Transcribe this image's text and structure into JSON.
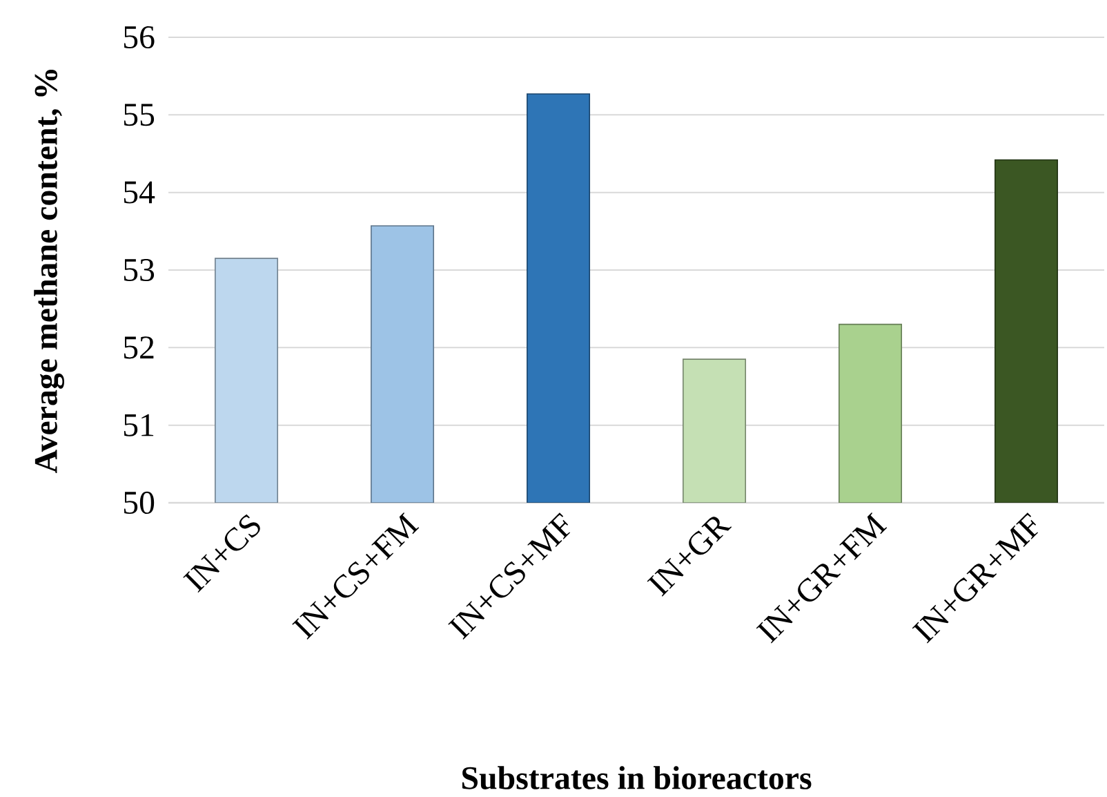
{
  "chart_data": {
    "type": "bar",
    "xlabel": "Substrates in bioreactors",
    "ylabel": "Average methane content, %",
    "categories": [
      "IN+CS",
      "IN+CS+FM",
      "IN+CS+MF",
      "IN+GR",
      "IN+GR+FM",
      "IN+GR+MF"
    ],
    "values": [
      53.15,
      53.57,
      55.27,
      51.85,
      52.3,
      54.42
    ],
    "colors": [
      "#bdd7ee",
      "#9dc3e6",
      "#2e75b6",
      "#c5e0b4",
      "#a9d18e",
      "#3b5723"
    ],
    "ylim": [
      50,
      56
    ],
    "yticks": [
      50,
      51,
      52,
      53,
      54,
      55,
      56
    ],
    "grid": "y"
  }
}
